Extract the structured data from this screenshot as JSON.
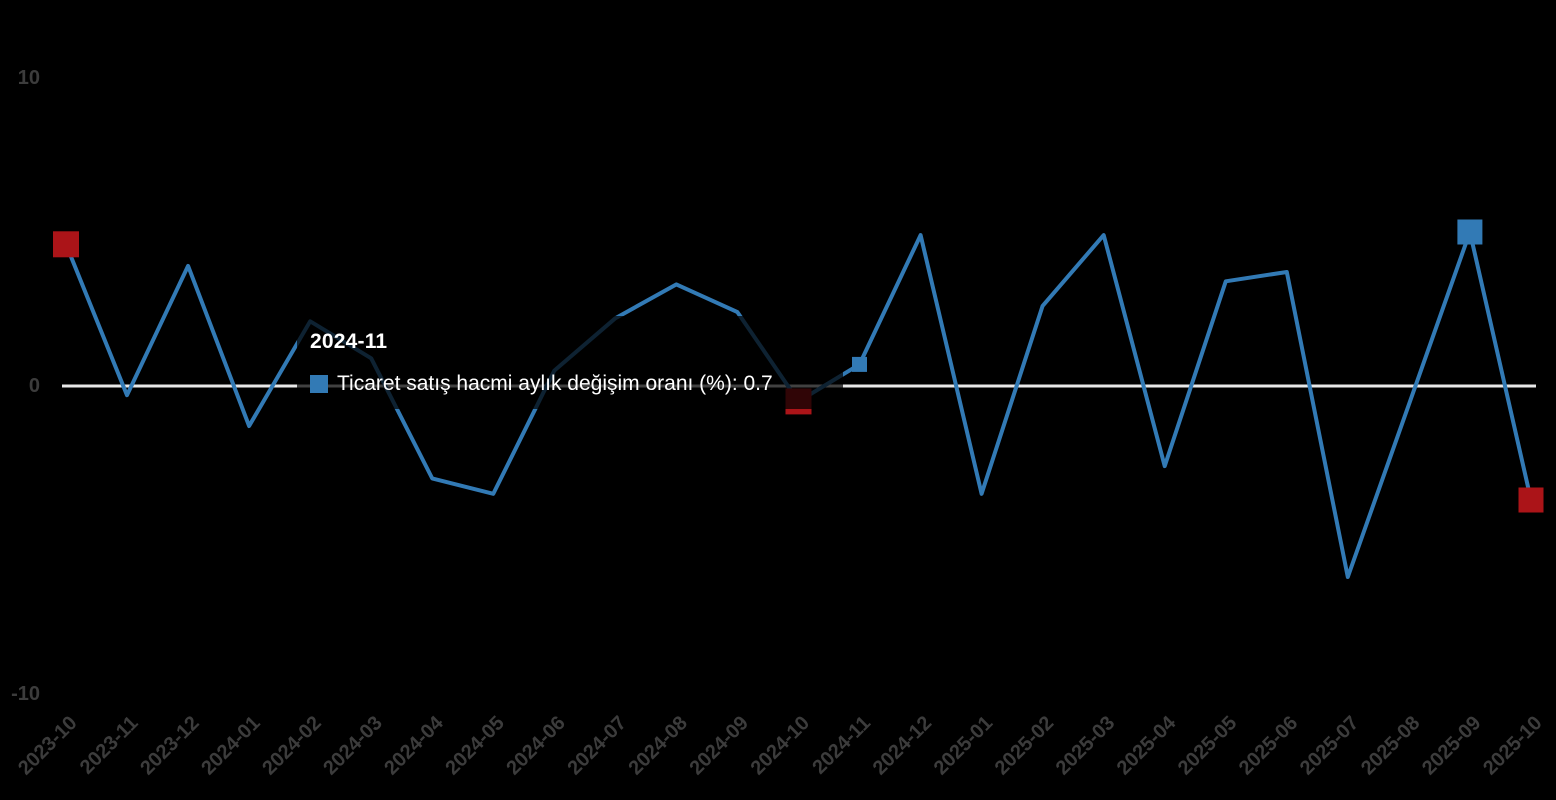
{
  "background": "#000000",
  "chart_data": {
    "type": "line",
    "title": "",
    "xlabel": "",
    "ylabel": "",
    "categories": [
      "2023-10",
      "2023-11",
      "2023-12",
      "2024-01",
      "2024-02",
      "2024-03",
      "2024-04",
      "2024-05",
      "2024-06",
      "2024-07",
      "2024-08",
      "2024-09",
      "2024-10",
      "2024-11",
      "2024-12",
      "2025-01",
      "2025-02",
      "2025-03",
      "2025-04",
      "2025-05",
      "2025-06",
      "2025-07",
      "2025-08",
      "2025-09",
      "2025-10"
    ],
    "series": [
      {
        "name": "Ticaret satış hacmi aylık değişim oranı (%)",
        "color": "#327ab5",
        "values": [
          4.6,
          -0.3,
          3.9,
          -1.3,
          2.1,
          0.9,
          -3.0,
          -3.5,
          0.5,
          2.2,
          3.3,
          2.4,
          -0.5,
          0.7,
          4.9,
          -3.5,
          2.6,
          4.9,
          -2.6,
          3.4,
          3.7,
          -6.2,
          -0.6,
          5.0,
          -3.7
        ]
      }
    ],
    "ylim": [
      -10,
      10
    ],
    "yticks": [
      "10",
      "0",
      "-10"
    ],
    "ytick_values": [
      10,
      0,
      -10
    ],
    "grid": false,
    "zero_line_color": "#e8e8e8",
    "axis_label_color": "#3c3c3c",
    "special_markers": [
      {
        "category": "2023-10",
        "value": 4.6,
        "color": "#ab1418",
        "size": 26,
        "dimmed": false
      },
      {
        "category": "2024-10",
        "value": -0.5,
        "color": "#ab1418",
        "size": 26,
        "dimmed": true
      },
      {
        "category": "2025-09",
        "value": 5.0,
        "color": "#327ab5",
        "size": 25,
        "dimmed": false
      },
      {
        "category": "2025-10",
        "value": -3.7,
        "color": "#ab1418",
        "size": 25,
        "dimmed": false
      }
    ]
  },
  "tooltip": {
    "title": "2024-11",
    "series_name": "Ticaret satış hacmi aylık değişim oranı (%)",
    "value": "0.7",
    "text": "Ticaret satış hacmi aylık değişim oranı (%): 0.7",
    "swatch_color": "#327ab5",
    "hover_category": "2024-11",
    "hover_value": 0.7,
    "hover_marker_size": 15
  }
}
